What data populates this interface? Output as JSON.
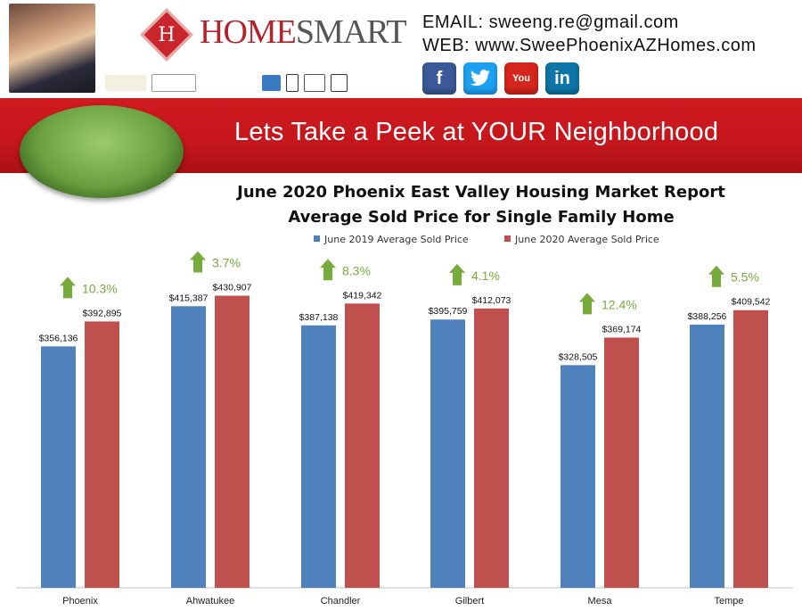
{
  "header": {
    "brand": {
      "part1": "HOME",
      "part2": "SMART"
    },
    "email": "EMAIL:  sweeng.re@gmail.com",
    "web": "WEB: www.SweePhoenixAZHomes.com",
    "social": [
      {
        "name": "facebook",
        "label": "f",
        "color": "#3b5998"
      },
      {
        "name": "twitter",
        "label": "t",
        "color": "#1da1f2"
      },
      {
        "name": "youtube",
        "label": "You",
        "color": "#d6251c"
      },
      {
        "name": "linkedin",
        "label": "in",
        "color": "#0e76a8"
      }
    ]
  },
  "banner": {
    "text": "Lets Take a Peek at YOUR Neighborhood"
  },
  "colors": {
    "series2019": "#4f81bd",
    "series2020": "#c0504d",
    "arrow": "#77ab3c",
    "banner": "#c4161c"
  },
  "chart_data": {
    "type": "bar",
    "title": "June 2020 Phoenix East Valley Housing Market Report",
    "subtitle": "Average Sold Price for Single Family Home",
    "legend_position": "top",
    "grid": false,
    "categories": [
      "Phoenix",
      "Ahwatukee",
      "Chandler",
      "Gilbert",
      "Mesa",
      "Tempe"
    ],
    "series": [
      {
        "name": "June 2019 Average Sold Price",
        "values": [
          356136,
          415387,
          387138,
          395759,
          328505,
          388256
        ],
        "labels": [
          "$356,136",
          "$415,387",
          "$387,138",
          "$395,759",
          "$328,505",
          "$388,256"
        ]
      },
      {
        "name": "June 2020 Average Sold Price",
        "values": [
          392895,
          430907,
          419342,
          412073,
          369174,
          409542
        ],
        "labels": [
          "$392,895",
          "$430,907",
          "$419,342",
          "$412,073",
          "$369,174",
          "$409,542"
        ]
      }
    ],
    "changes": [
      "10.3%",
      "3.7%",
      "8.3%",
      "4.1%",
      "12.4%",
      "5.5%"
    ],
    "ylim": [
      0,
      500000
    ]
  }
}
